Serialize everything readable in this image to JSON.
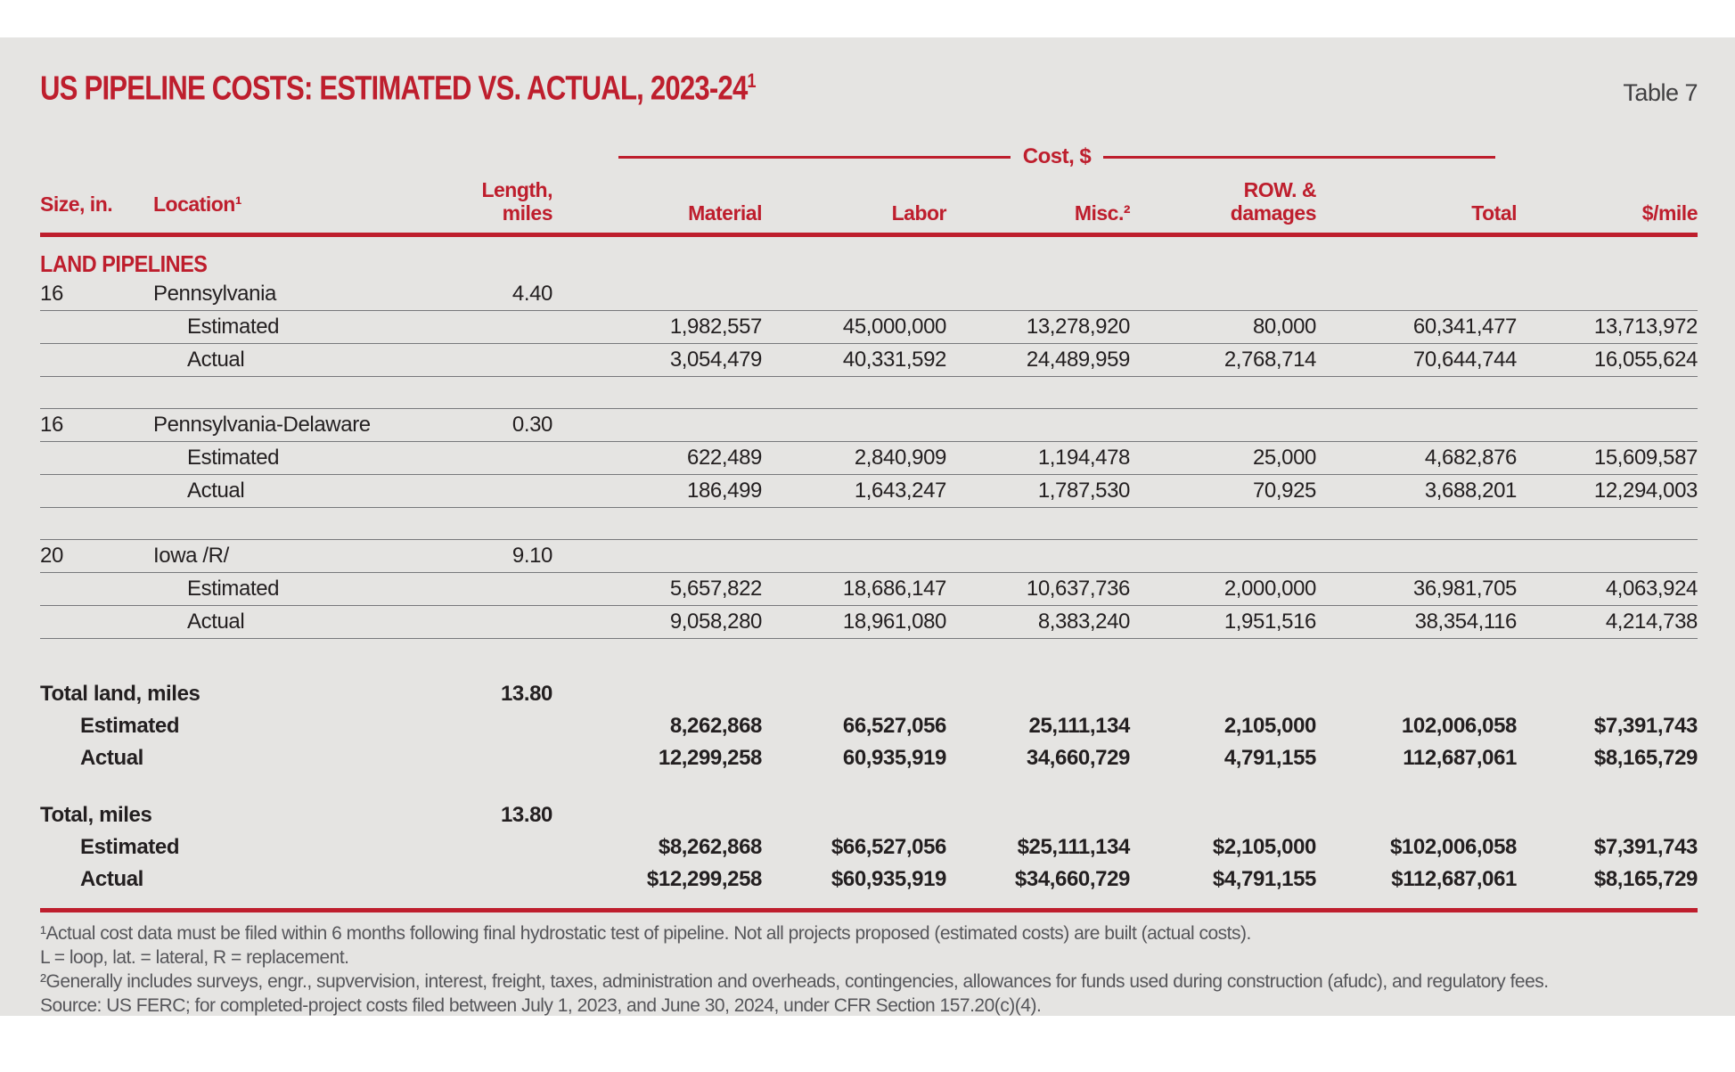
{
  "header": {
    "title": "US PIPELINE COSTS: ESTIMATED VS. ACTUAL, 2023-24",
    "title_superscript": "1",
    "table_label": "Table 7"
  },
  "table": {
    "cost_group_label": "Cost, $",
    "columns": {
      "size": "Size, in.",
      "location": "Location¹",
      "length_line1": "Length,",
      "length_line2": "miles",
      "material": "Material",
      "labor": "Labor",
      "misc": "Misc.²",
      "row_line1": "ROW. &",
      "row_line2": "damages",
      "total": "Total",
      "per_mile": "$/mile"
    },
    "section_label": "LAND PIPELINES",
    "blocks": [
      {
        "size": "16",
        "location": "Pennsylvania",
        "length": "4.40",
        "estimated": {
          "label": "Estimated",
          "material": "1,982,557",
          "labor": "45,000,000",
          "misc": "13,278,920",
          "row": "80,000",
          "total": "60,341,477",
          "per_mile": "13,713,972"
        },
        "actual": {
          "label": "Actual",
          "material": "3,054,479",
          "labor": "40,331,592",
          "misc": "24,489,959",
          "row": "2,768,714",
          "total": "70,644,744",
          "per_mile": "16,055,624"
        }
      },
      {
        "size": "16",
        "location": "Pennsylvania-Delaware",
        "length": "0.30",
        "estimated": {
          "label": "Estimated",
          "material": "622,489",
          "labor": "2,840,909",
          "misc": "1,194,478",
          "row": "25,000",
          "total": "4,682,876",
          "per_mile": "15,609,587"
        },
        "actual": {
          "label": "Actual",
          "material": "186,499",
          "labor": "1,643,247",
          "misc": "1,787,530",
          "row": "70,925",
          "total": "3,688,201",
          "per_mile": "12,294,003"
        }
      },
      {
        "size": "20",
        "location": "Iowa /R/",
        "length": "9.10",
        "estimated": {
          "label": "Estimated",
          "material": "5,657,822",
          "labor": "18,686,147",
          "misc": "10,637,736",
          "row": "2,000,000",
          "total": "36,981,705",
          "per_mile": "4,063,924"
        },
        "actual": {
          "label": "Actual",
          "material": "9,058,280",
          "labor": "18,961,080",
          "misc": "8,383,240",
          "row": "1,951,516",
          "total": "38,354,116",
          "per_mile": "4,214,738"
        }
      }
    ],
    "totals": [
      {
        "label": "Total land, miles",
        "length": "13.80",
        "estimated": {
          "label": "Estimated",
          "material": "8,262,868",
          "labor": "66,527,056",
          "misc": "25,111,134",
          "row": "2,105,000",
          "total": "102,006,058",
          "per_mile": "$7,391,743"
        },
        "actual": {
          "label": "Actual",
          "material": "12,299,258",
          "labor": "60,935,919",
          "misc": "34,660,729",
          "row": "4,791,155",
          "total": "112,687,061",
          "per_mile": "$8,165,729"
        }
      },
      {
        "label": "Total, miles",
        "length": "13.80",
        "estimated": {
          "label": "Estimated",
          "material": "$8,262,868",
          "labor": "$66,527,056",
          "misc": "$25,111,134",
          "row": "$2,105,000",
          "total": "$102,006,058",
          "per_mile": "$7,391,743"
        },
        "actual": {
          "label": "Actual",
          "material": "$12,299,258",
          "labor": "$60,935,919",
          "misc": "$34,660,729",
          "row": "$4,791,155",
          "total": "$112,687,061",
          "per_mile": "$8,165,729"
        }
      }
    ]
  },
  "footnotes": [
    "¹Actual cost data must be filed within 6 months following final hydrostatic test of pipeline. Not all projects proposed (estimated costs) are built (actual costs).",
    "L = loop, lat. = lateral, R = replacement.",
    "²Generally includes surveys, engr., supvervision, interest, freight, taxes, administration and overheads, contingencies, allowances for funds used during construction (afudc), and regulatory fees.",
    "Source: US FERC; for completed-project costs filed between July 1, 2023, and June 30, 2024, under CFR Section 157.20(c)(4)."
  ],
  "colors": {
    "accent_red": "#be1e2d",
    "panel_background": "#e5e4e2",
    "body_text": "#231f20",
    "footnote_text": "#56565a",
    "row_line": "#77787b"
  }
}
